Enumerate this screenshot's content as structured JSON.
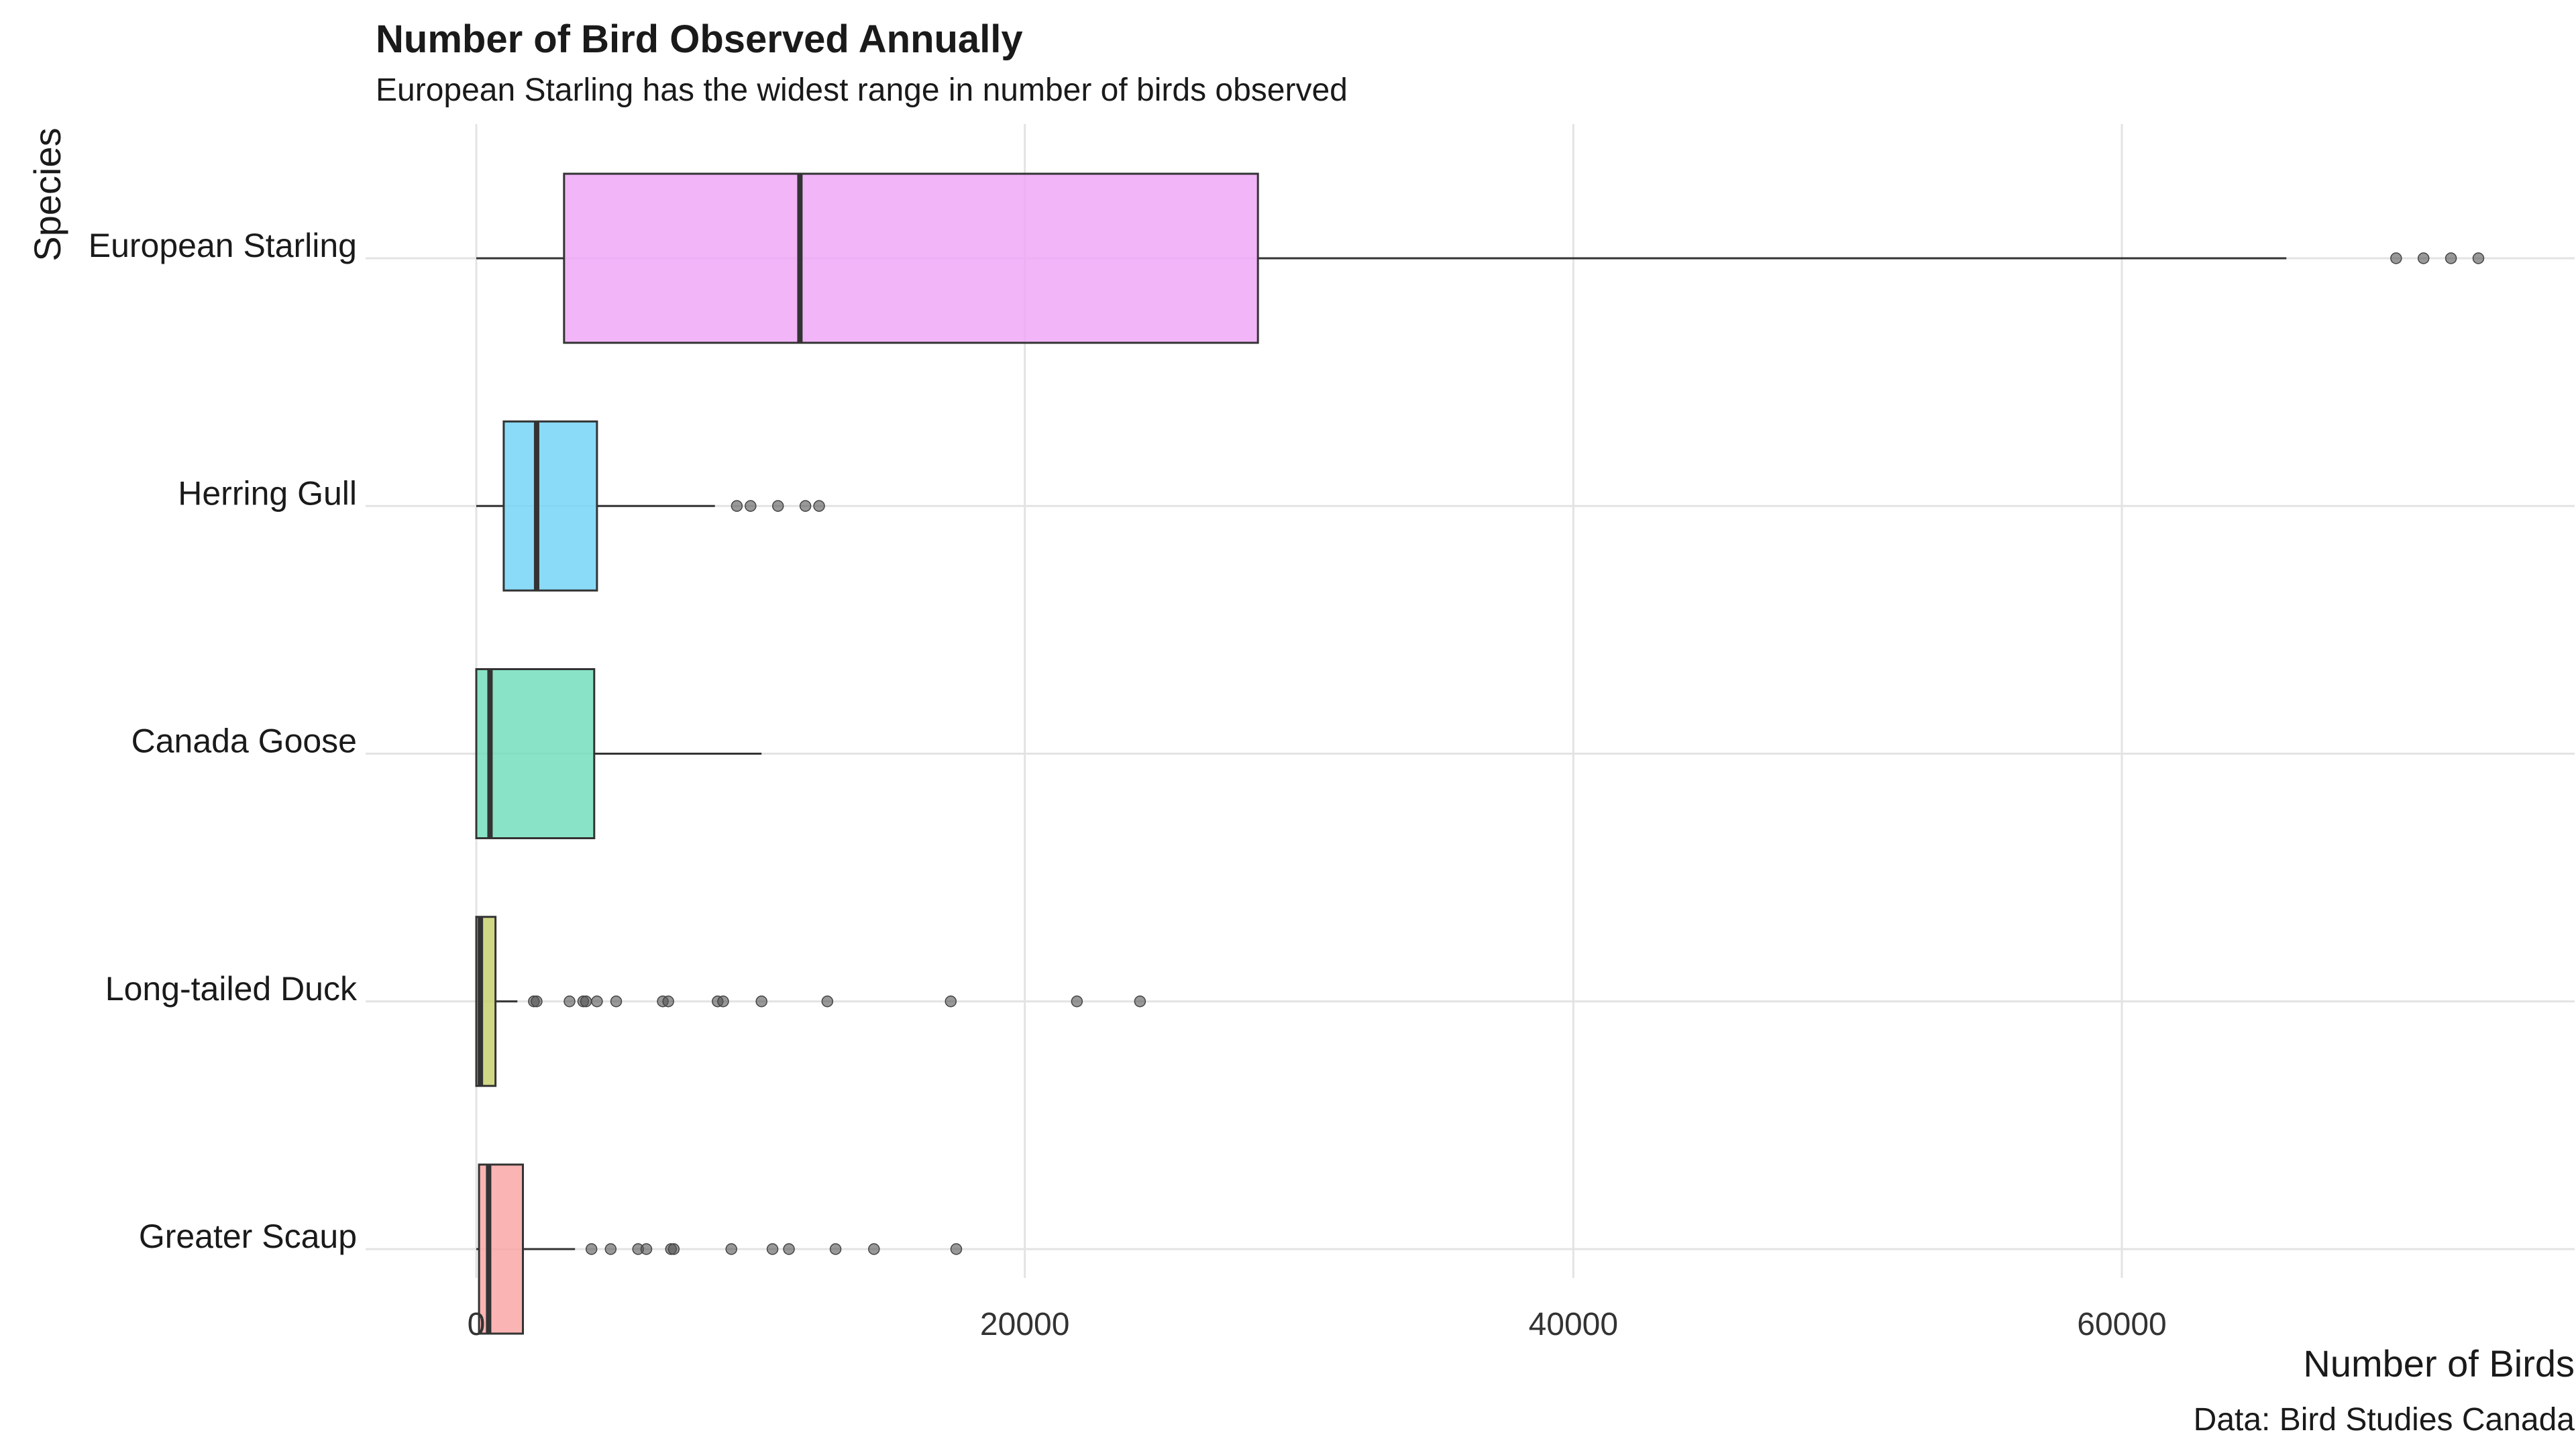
{
  "chart_data": {
    "type": "boxplot",
    "title": "Number of Bird Observed Annually",
    "subtitle": "European Starling has the widest range in number of birds observed",
    "xlabel": "Number of Birds",
    "ylabel": "Species",
    "caption": "Data: Bird Studies Canada",
    "xlim": [
      -4000,
      77000
    ],
    "x_ticks": [
      0,
      20000,
      40000,
      60000
    ],
    "x_tick_labels": [
      "0",
      "20000",
      "40000",
      "60000"
    ],
    "grid": true,
    "legend": "none",
    "series": [
      {
        "name": "European Starling",
        "color": "#EFA5F7",
        "min": 0,
        "q1": 3200,
        "median": 11800,
        "q3": 28500,
        "max": 66000,
        "outliers": [
          70000,
          71000,
          72000,
          73000
        ]
      },
      {
        "name": "Herring Gull",
        "color": "#70D3F7",
        "min": 0,
        "q1": 1000,
        "median": 2200,
        "q3": 4400,
        "max": 8700,
        "outliers": [
          9500,
          10000,
          11000,
          12000,
          12500
        ]
      },
      {
        "name": "Canada Goose",
        "color": "#6FDDBA",
        "min": 0,
        "q1": 0,
        "median": 500,
        "q3": 4300,
        "max": 10400,
        "outliers": []
      },
      {
        "name": "Long-tailed Duck",
        "color": "#C7CF6A",
        "min": 0,
        "q1": 0,
        "median": 150,
        "q3": 700,
        "max": 1500,
        "outliers": [
          2100,
          2200,
          3400,
          3900,
          4000,
          4400,
          5100,
          6800,
          7000,
          8800,
          9000,
          10400,
          12800,
          17300,
          21900,
          24200
        ]
      },
      {
        "name": "Greater Scaup",
        "color": "#F9A4A4",
        "min": 0,
        "q1": 100,
        "median": 450,
        "q3": 1700,
        "max": 3600,
        "outliers": [
          4200,
          4900,
          5900,
          6200,
          7100,
          7200,
          9300,
          10800,
          11400,
          13100,
          14500,
          17500
        ]
      }
    ]
  }
}
